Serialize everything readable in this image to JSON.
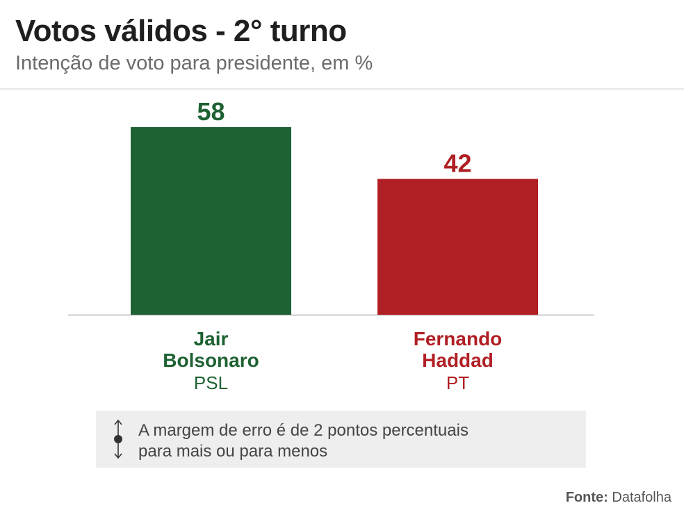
{
  "header": {
    "title": "Votos válidos - 2° turno",
    "subtitle": "Intenção de voto para presidente, em %"
  },
  "colors": {
    "bolsonaro": "#1e6132",
    "haddad": "#b01f24",
    "axis": "#cccccc",
    "legend_bg": "#eeeeee"
  },
  "chart_data": {
    "type": "bar",
    "title": "Votos válidos - 2° turno",
    "subtitle": "Intenção de voto para presidente, em %",
    "categories": [
      "Jair Bolsonaro",
      "Fernando Haddad"
    ],
    "values": [
      58,
      42
    ],
    "parties": [
      "PSL",
      "PT"
    ],
    "name_lines": [
      [
        "Jair",
        "Bolsonaro"
      ],
      [
        "Fernando",
        "Haddad"
      ]
    ],
    "series_colors": [
      "#1e6132",
      "#b01f24"
    ],
    "data_labels": [
      "58",
      "42"
    ],
    "ylim": [
      0,
      58
    ],
    "grid": false
  },
  "legend": {
    "line1": "A margem de erro é de 2 pontos percentuais",
    "line2": "para mais ou para menos"
  },
  "source": {
    "label": "Fonte:",
    "name": "Datafolha"
  }
}
